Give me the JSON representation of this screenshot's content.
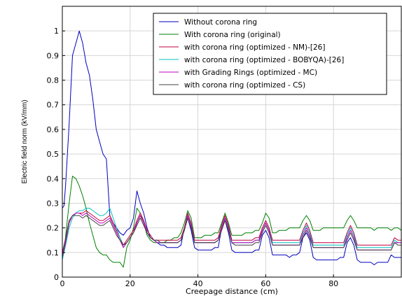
{
  "chart_data": {
    "type": "line",
    "title": "",
    "xlabel": "Creepage distance (cm)",
    "ylabel": "Electric field norm (kV/mm)",
    "xlim": [
      0,
      100
    ],
    "ylim": [
      0,
      1.1
    ],
    "x_ticks": [
      0,
      20,
      40,
      60,
      80
    ],
    "y_ticks": [
      0,
      0.1,
      0.2,
      0.3,
      0.4,
      0.5,
      0.6,
      0.7,
      0.8,
      0.9,
      1
    ],
    "grid": true,
    "legend_position": "top-right",
    "series": [
      {
        "name": "Without corona ring",
        "color": "#0000bf",
        "x": [
          0,
          0.5,
          1,
          2,
          3,
          4,
          5,
          6,
          7,
          8,
          9,
          10,
          11,
          12,
          13,
          14,
          15,
          16,
          17,
          18,
          19,
          20,
          21,
          22,
          23,
          24,
          25,
          26,
          27,
          28,
          29,
          30,
          31,
          32,
          33,
          34,
          35,
          36,
          37,
          38,
          39,
          40,
          41,
          42,
          43,
          44,
          45,
          46,
          47,
          48,
          49,
          50,
          51,
          52,
          53,
          54,
          55,
          56,
          57,
          58,
          59,
          60,
          61,
          62,
          63,
          64,
          65,
          66,
          67,
          68,
          69,
          70,
          71,
          72,
          73,
          74,
          75,
          76,
          77,
          78,
          79,
          80,
          81,
          82,
          83,
          84,
          85,
          86,
          87,
          88,
          89,
          90,
          91,
          92,
          93,
          94,
          95,
          96,
          97,
          98,
          99,
          100
        ],
        "y": [
          0.28,
          0.29,
          0.38,
          0.62,
          0.9,
          0.95,
          1.0,
          0.95,
          0.87,
          0.82,
          0.72,
          0.6,
          0.55,
          0.5,
          0.48,
          0.25,
          0.22,
          0.2,
          0.18,
          0.17,
          0.19,
          0.2,
          0.24,
          0.35,
          0.3,
          0.26,
          0.2,
          0.16,
          0.15,
          0.14,
          0.13,
          0.13,
          0.12,
          0.12,
          0.12,
          0.12,
          0.13,
          0.2,
          0.24,
          0.19,
          0.12,
          0.11,
          0.11,
          0.11,
          0.11,
          0.11,
          0.12,
          0.12,
          0.2,
          0.23,
          0.18,
          0.11,
          0.1,
          0.1,
          0.1,
          0.1,
          0.1,
          0.1,
          0.11,
          0.11,
          0.17,
          0.19,
          0.16,
          0.09,
          0.09,
          0.09,
          0.09,
          0.09,
          0.08,
          0.09,
          0.09,
          0.1,
          0.16,
          0.18,
          0.15,
          0.08,
          0.07,
          0.07,
          0.07,
          0.07,
          0.07,
          0.07,
          0.07,
          0.08,
          0.08,
          0.14,
          0.16,
          0.13,
          0.07,
          0.06,
          0.06,
          0.06,
          0.06,
          0.05,
          0.06,
          0.06,
          0.06,
          0.06,
          0.09,
          0.08,
          0.08,
          0.08
        ]
      },
      {
        "name": "With corona ring (original)",
        "color": "#008000",
        "x": [
          0,
          0.5,
          1,
          2,
          3,
          4,
          5,
          6,
          7,
          8,
          9,
          10,
          11,
          12,
          13,
          14,
          15,
          16,
          17,
          18,
          19,
          20,
          21,
          22,
          23,
          24,
          25,
          26,
          27,
          28,
          29,
          30,
          31,
          32,
          33,
          34,
          35,
          36,
          37,
          38,
          39,
          40,
          41,
          42,
          43,
          44,
          45,
          46,
          47,
          48,
          49,
          50,
          51,
          52,
          53,
          54,
          55,
          56,
          57,
          58,
          59,
          60,
          61,
          62,
          63,
          64,
          65,
          66,
          67,
          68,
          69,
          70,
          71,
          72,
          73,
          74,
          75,
          76,
          77,
          78,
          79,
          80,
          81,
          82,
          83,
          84,
          85,
          86,
          87,
          88,
          89,
          90,
          91,
          92,
          93,
          94,
          95,
          96,
          97,
          98,
          99,
          100
        ],
        "y": [
          0.08,
          0.1,
          0.17,
          0.3,
          0.41,
          0.4,
          0.37,
          0.33,
          0.28,
          0.22,
          0.17,
          0.12,
          0.1,
          0.09,
          0.09,
          0.07,
          0.06,
          0.06,
          0.06,
          0.04,
          0.12,
          0.15,
          0.2,
          0.28,
          0.26,
          0.22,
          0.17,
          0.15,
          0.14,
          0.14,
          0.14,
          0.14,
          0.15,
          0.15,
          0.16,
          0.16,
          0.18,
          0.22,
          0.27,
          0.24,
          0.16,
          0.16,
          0.16,
          0.17,
          0.17,
          0.17,
          0.18,
          0.18,
          0.22,
          0.26,
          0.22,
          0.17,
          0.17,
          0.17,
          0.17,
          0.18,
          0.18,
          0.18,
          0.19,
          0.19,
          0.22,
          0.26,
          0.24,
          0.18,
          0.18,
          0.19,
          0.19,
          0.19,
          0.2,
          0.2,
          0.2,
          0.2,
          0.23,
          0.25,
          0.23,
          0.19,
          0.19,
          0.19,
          0.2,
          0.2,
          0.2,
          0.2,
          0.2,
          0.2,
          0.2,
          0.23,
          0.25,
          0.23,
          0.2,
          0.2,
          0.2,
          0.2,
          0.2,
          0.19,
          0.2,
          0.2,
          0.2,
          0.2,
          0.19,
          0.2,
          0.2,
          0.19
        ]
      },
      {
        "name": "with corona ring (optimized - NM)-[26]",
        "color": "#c00040",
        "x": [
          0,
          1,
          2,
          3,
          4,
          5,
          6,
          7,
          8,
          9,
          10,
          11,
          12,
          13,
          14,
          15,
          16,
          17,
          18,
          19,
          20,
          21,
          22,
          23,
          24,
          25,
          26,
          27,
          28,
          29,
          30,
          31,
          32,
          33,
          34,
          35,
          36,
          37,
          38,
          39,
          40,
          41,
          42,
          43,
          44,
          45,
          46,
          47,
          48,
          49,
          50,
          51,
          52,
          53,
          54,
          55,
          56,
          57,
          58,
          59,
          60,
          61,
          62,
          63,
          64,
          65,
          66,
          67,
          68,
          69,
          70,
          71,
          72,
          73,
          74,
          75,
          76,
          77,
          78,
          79,
          80,
          81,
          82,
          83,
          84,
          85,
          86,
          87,
          88,
          89,
          90,
          91,
          92,
          93,
          94,
          95,
          96,
          97,
          98,
          99,
          100
        ],
        "y": [
          0.08,
          0.14,
          0.22,
          0.25,
          0.26,
          0.26,
          0.26,
          0.27,
          0.26,
          0.25,
          0.24,
          0.23,
          0.23,
          0.24,
          0.25,
          0.22,
          0.19,
          0.16,
          0.13,
          0.15,
          0.17,
          0.19,
          0.23,
          0.26,
          0.23,
          0.19,
          0.17,
          0.15,
          0.15,
          0.15,
          0.15,
          0.15,
          0.15,
          0.15,
          0.15,
          0.16,
          0.2,
          0.26,
          0.22,
          0.15,
          0.15,
          0.15,
          0.15,
          0.15,
          0.15,
          0.15,
          0.16,
          0.21,
          0.25,
          0.21,
          0.15,
          0.15,
          0.15,
          0.15,
          0.15,
          0.15,
          0.15,
          0.16,
          0.16,
          0.2,
          0.23,
          0.2,
          0.15,
          0.15,
          0.15,
          0.15,
          0.15,
          0.15,
          0.15,
          0.15,
          0.15,
          0.19,
          0.22,
          0.19,
          0.14,
          0.14,
          0.14,
          0.14,
          0.14,
          0.14,
          0.14,
          0.14,
          0.14,
          0.14,
          0.18,
          0.21,
          0.18,
          0.13,
          0.13,
          0.13,
          0.13,
          0.13,
          0.13,
          0.13,
          0.13,
          0.13,
          0.13,
          0.13,
          0.16,
          0.15,
          0.15
        ]
      },
      {
        "name": "with corona ring (optimized - BOBYQA)-[26]",
        "color": "#00bfbf",
        "x": [
          0,
          1,
          2,
          3,
          4,
          5,
          6,
          7,
          8,
          9,
          10,
          11,
          12,
          13,
          14,
          15,
          16,
          17,
          18,
          19,
          20,
          21,
          22,
          23,
          24,
          25,
          26,
          27,
          28,
          29,
          30,
          31,
          32,
          33,
          34,
          35,
          36,
          37,
          38,
          39,
          40,
          41,
          42,
          43,
          44,
          45,
          46,
          47,
          48,
          49,
          50,
          51,
          52,
          53,
          54,
          55,
          56,
          57,
          58,
          59,
          60,
          61,
          62,
          63,
          64,
          65,
          66,
          67,
          68,
          69,
          70,
          71,
          72,
          73,
          74,
          75,
          76,
          77,
          78,
          79,
          80,
          81,
          82,
          83,
          84,
          85,
          86,
          87,
          88,
          89,
          90,
          91,
          92,
          93,
          94,
          95,
          96,
          97,
          98,
          99,
          100
        ],
        "y": [
          0.07,
          0.13,
          0.2,
          0.24,
          0.26,
          0.27,
          0.27,
          0.28,
          0.28,
          0.27,
          0.26,
          0.25,
          0.25,
          0.26,
          0.28,
          0.24,
          0.2,
          0.16,
          0.12,
          0.14,
          0.16,
          0.18,
          0.22,
          0.25,
          0.22,
          0.18,
          0.16,
          0.15,
          0.14,
          0.14,
          0.14,
          0.14,
          0.14,
          0.14,
          0.14,
          0.15,
          0.19,
          0.25,
          0.21,
          0.14,
          0.14,
          0.14,
          0.14,
          0.14,
          0.14,
          0.14,
          0.15,
          0.2,
          0.24,
          0.2,
          0.14,
          0.14,
          0.14,
          0.14,
          0.14,
          0.14,
          0.14,
          0.15,
          0.15,
          0.19,
          0.22,
          0.19,
          0.14,
          0.14,
          0.14,
          0.14,
          0.14,
          0.14,
          0.14,
          0.14,
          0.14,
          0.18,
          0.21,
          0.18,
          0.13,
          0.13,
          0.13,
          0.13,
          0.13,
          0.13,
          0.13,
          0.13,
          0.13,
          0.13,
          0.17,
          0.2,
          0.17,
          0.12,
          0.12,
          0.12,
          0.12,
          0.12,
          0.12,
          0.12,
          0.12,
          0.12,
          0.12,
          0.12,
          0.15,
          0.14,
          0.14
        ]
      },
      {
        "name": "with Grading Rings (optimized - MC)",
        "color": "#bf00bf",
        "x": [
          0,
          1,
          2,
          3,
          4,
          5,
          6,
          7,
          8,
          9,
          10,
          11,
          12,
          13,
          14,
          15,
          16,
          17,
          18,
          19,
          20,
          21,
          22,
          23,
          24,
          25,
          26,
          27,
          28,
          29,
          30,
          31,
          32,
          33,
          34,
          35,
          36,
          37,
          38,
          39,
          40,
          41,
          42,
          43,
          44,
          45,
          46,
          47,
          48,
          49,
          50,
          51,
          52,
          53,
          54,
          55,
          56,
          57,
          58,
          59,
          60,
          61,
          62,
          63,
          64,
          65,
          66,
          67,
          68,
          69,
          70,
          71,
          72,
          73,
          74,
          75,
          76,
          77,
          78,
          79,
          80,
          81,
          82,
          83,
          84,
          85,
          86,
          87,
          88,
          89,
          90,
          91,
          92,
          93,
          94,
          95,
          96,
          97,
          98,
          99,
          100
        ],
        "y": [
          0.09,
          0.15,
          0.22,
          0.25,
          0.26,
          0.26,
          0.25,
          0.26,
          0.25,
          0.24,
          0.23,
          0.22,
          0.22,
          0.23,
          0.24,
          0.21,
          0.18,
          0.15,
          0.12,
          0.14,
          0.16,
          0.18,
          0.22,
          0.25,
          0.22,
          0.18,
          0.16,
          0.15,
          0.14,
          0.14,
          0.14,
          0.14,
          0.14,
          0.14,
          0.14,
          0.15,
          0.19,
          0.25,
          0.21,
          0.14,
          0.14,
          0.14,
          0.14,
          0.14,
          0.14,
          0.14,
          0.15,
          0.2,
          0.24,
          0.2,
          0.14,
          0.14,
          0.14,
          0.14,
          0.14,
          0.14,
          0.14,
          0.15,
          0.15,
          0.19,
          0.22,
          0.19,
          0.13,
          0.13,
          0.13,
          0.13,
          0.13,
          0.13,
          0.13,
          0.13,
          0.13,
          0.17,
          0.2,
          0.17,
          0.12,
          0.12,
          0.12,
          0.12,
          0.12,
          0.12,
          0.12,
          0.12,
          0.12,
          0.12,
          0.16,
          0.19,
          0.16,
          0.11,
          0.11,
          0.11,
          0.11,
          0.11,
          0.11,
          0.11,
          0.11,
          0.11,
          0.11,
          0.11,
          0.14,
          0.14,
          0.14
        ]
      },
      {
        "name": "with corona ring (optimized - CS)",
        "color": "#404040",
        "x": [
          0,
          1,
          2,
          3,
          4,
          5,
          6,
          7,
          8,
          9,
          10,
          11,
          12,
          13,
          14,
          15,
          16,
          17,
          18,
          19,
          20,
          21,
          22,
          23,
          24,
          25,
          26,
          27,
          28,
          29,
          30,
          31,
          32,
          33,
          34,
          35,
          36,
          37,
          38,
          39,
          40,
          41,
          42,
          43,
          44,
          45,
          46,
          47,
          48,
          49,
          50,
          51,
          52,
          53,
          54,
          55,
          56,
          57,
          58,
          59,
          60,
          61,
          62,
          63,
          64,
          65,
          66,
          67,
          68,
          69,
          70,
          71,
          72,
          73,
          74,
          75,
          76,
          77,
          78,
          79,
          80,
          81,
          82,
          83,
          84,
          85,
          86,
          87,
          88,
          89,
          90,
          91,
          92,
          93,
          94,
          95,
          96,
          97,
          98,
          99,
          100
        ],
        "y": [
          0.1,
          0.16,
          0.23,
          0.25,
          0.25,
          0.25,
          0.24,
          0.25,
          0.24,
          0.23,
          0.22,
          0.21,
          0.21,
          0.22,
          0.23,
          0.2,
          0.17,
          0.15,
          0.13,
          0.14,
          0.16,
          0.18,
          0.21,
          0.24,
          0.21,
          0.18,
          0.16,
          0.15,
          0.15,
          0.14,
          0.14,
          0.14,
          0.14,
          0.14,
          0.14,
          0.15,
          0.19,
          0.24,
          0.2,
          0.14,
          0.14,
          0.14,
          0.14,
          0.14,
          0.14,
          0.14,
          0.15,
          0.19,
          0.23,
          0.19,
          0.14,
          0.13,
          0.13,
          0.13,
          0.13,
          0.13,
          0.13,
          0.14,
          0.14,
          0.18,
          0.21,
          0.18,
          0.13,
          0.13,
          0.13,
          0.13,
          0.13,
          0.13,
          0.13,
          0.13,
          0.13,
          0.16,
          0.19,
          0.16,
          0.12,
          0.12,
          0.12,
          0.12,
          0.12,
          0.12,
          0.12,
          0.12,
          0.12,
          0.12,
          0.15,
          0.18,
          0.15,
          0.11,
          0.11,
          0.11,
          0.11,
          0.11,
          0.11,
          0.11,
          0.11,
          0.11,
          0.11,
          0.11,
          0.14,
          0.13,
          0.13
        ]
      }
    ]
  }
}
